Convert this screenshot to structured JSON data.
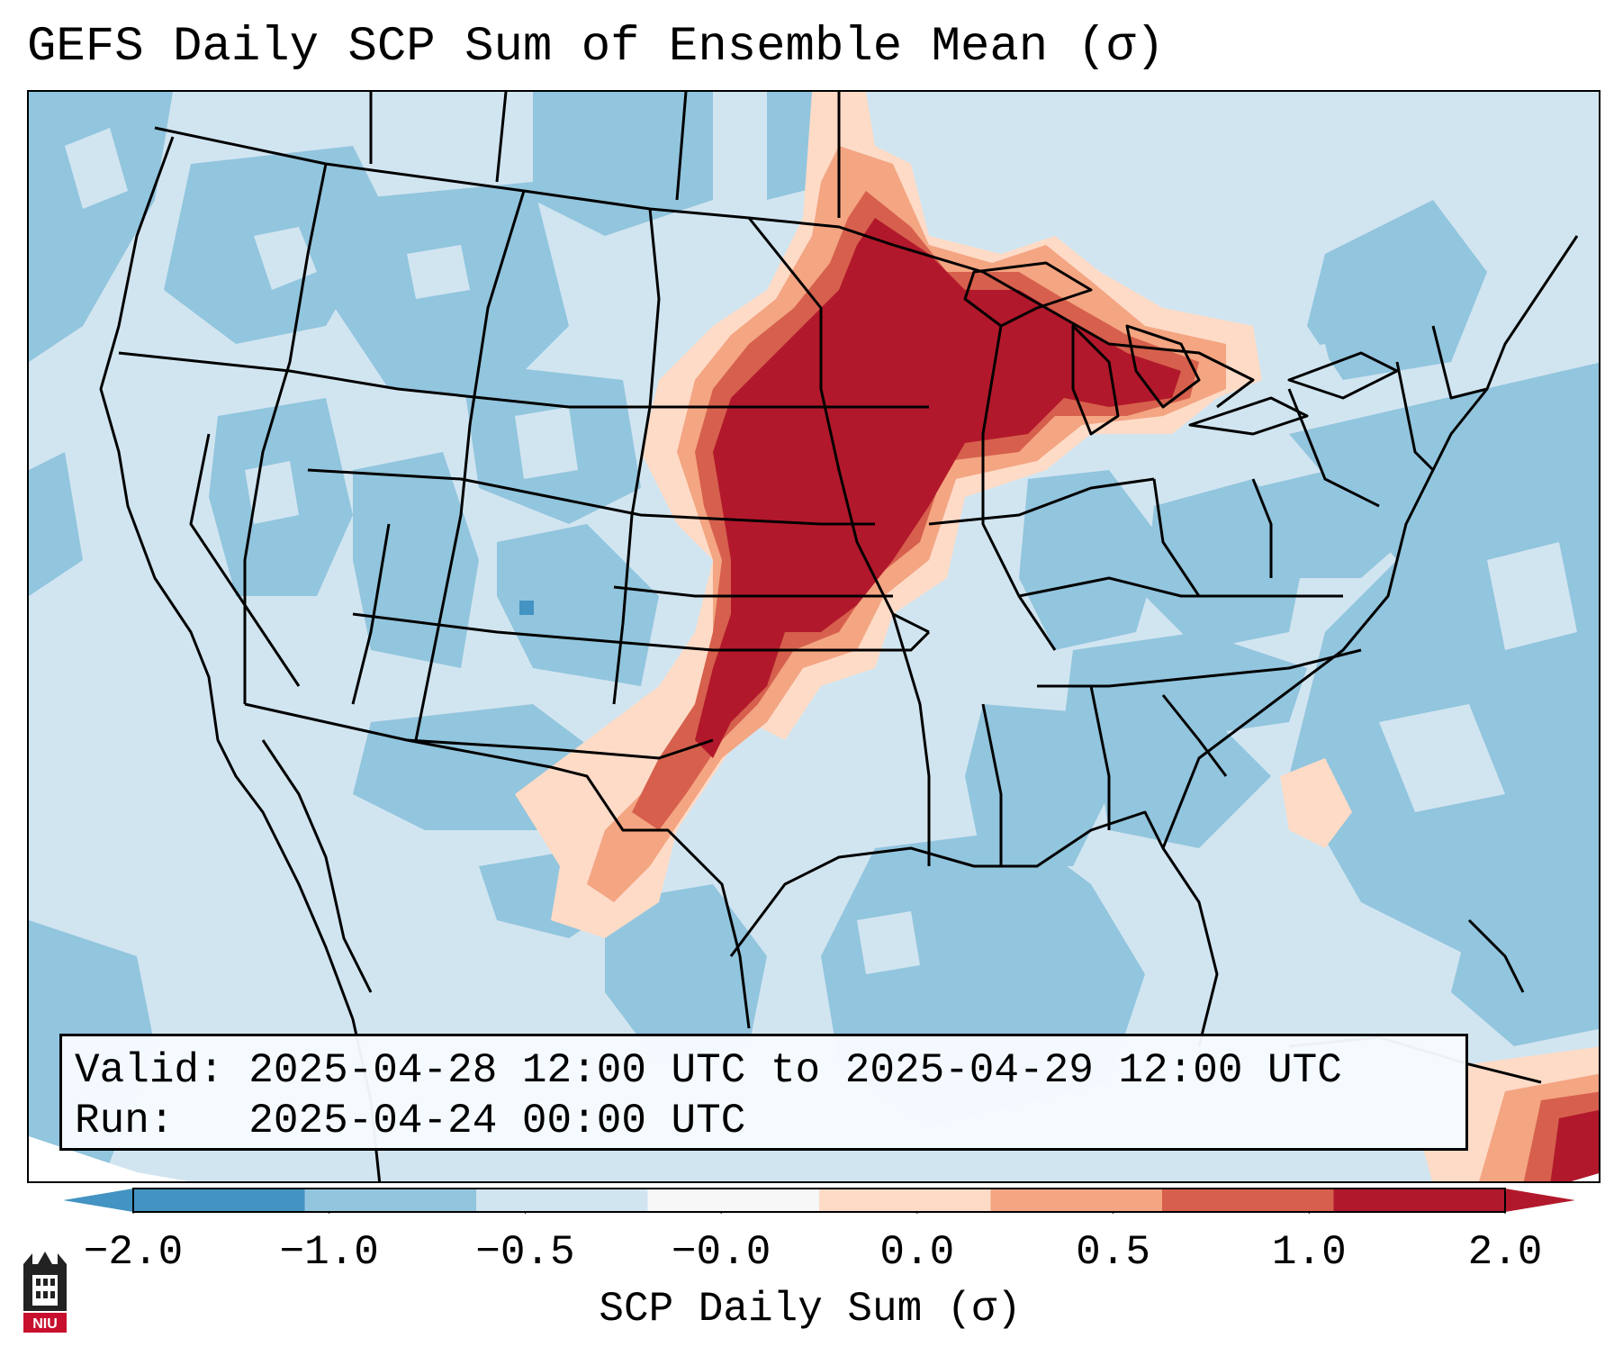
{
  "title": "GEFS Daily SCP Sum of Ensemble Mean (σ)",
  "info": {
    "valid_label": "Valid:",
    "valid_value": "2025-04-28 12:00 UTC to 2025-04-29 12:00 UTC",
    "run_label": "Run:",
    "run_value": "2025-04-24 00:00 UTC"
  },
  "colorbar": {
    "label": "SCP Daily Sum (σ)",
    "ticks": [
      "−2.0",
      "−1.0",
      "−0.5",
      "−0.0",
      "0.0",
      "0.5",
      "1.0",
      "2.0"
    ],
    "colors": [
      "#4393c3",
      "#92c5de",
      "#d1e5f0",
      "#f7f7f7",
      "#fddbc7",
      "#f4a582",
      "#d6604d",
      "#b2182b"
    ],
    "extend": "both"
  },
  "map": {
    "region": "Contiguous United States",
    "features": [
      "state-borders",
      "country-borders",
      "coastlines",
      "great-lakes"
    ]
  },
  "logo": {
    "text": "NIU"
  }
}
